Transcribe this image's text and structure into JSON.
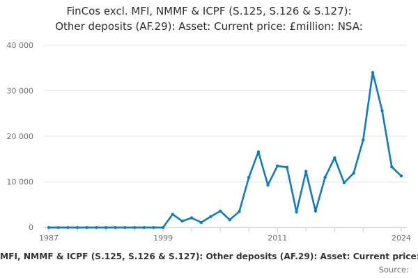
{
  "title": {
    "line1": "FinCos excl. MFI, NMMF & ICPF (S.125, S.126 & S.127):",
    "line2": "Other deposits (AF.29): Asset: Current price: £million: NSA:"
  },
  "footer": {
    "series_label": "MFI, NMMF & ICPF (S.125, S.126 & S.127): Other deposits (AF.29): Asset: Current price:",
    "source_label": "Source:"
  },
  "colors": {
    "line": "#0f7bc4",
    "grid": "#e6e6e6",
    "axis": "#c4ccd9",
    "tick_text": "#6e6e6e",
    "title_text": "#2e2e2e",
    "footer_text": "#333333"
  },
  "chart_data": {
    "type": "line",
    "title": "FinCos excl. MFI, NMMF & ICPF (S.125, S.126 & S.127): Other deposits (AF.29): Asset: Current price: £million: NSA:",
    "xlabel": "",
    "ylabel": "",
    "x": [
      1987,
      1988,
      1989,
      1990,
      1991,
      1992,
      1993,
      1994,
      1995,
      1996,
      1997,
      1998,
      1999,
      2000,
      2001,
      2002,
      2003,
      2004,
      2005,
      2006,
      2007,
      2008,
      2009,
      2010,
      2011,
      2012,
      2013,
      2014,
      2015,
      2016,
      2017,
      2018,
      2019,
      2020,
      2021,
      2022,
      2023,
      2024
    ],
    "values": [
      0,
      0,
      0,
      0,
      0,
      0,
      0,
      0,
      0,
      0,
      0,
      0,
      0,
      2900,
      1400,
      2100,
      1100,
      2400,
      3600,
      1700,
      3500,
      11000,
      16600,
      9300,
      13500,
      13200,
      3400,
      12300,
      3600,
      11000,
      15300,
      9800,
      11900,
      19200,
      34000,
      25600,
      13300,
      11300
    ],
    "xlim": [
      1987,
      2024
    ],
    "ylim": [
      0,
      40000
    ],
    "yticks": [
      0,
      10000,
      20000,
      30000,
      40000
    ],
    "ytick_labels": [
      "0",
      "10 000",
      "20 000",
      "30 000",
      "40 000"
    ],
    "xticks": [
      1987,
      1990,
      1993,
      1996,
      1999,
      2002,
      2005,
      2008,
      2011,
      2014,
      2017,
      2020,
      2024
    ],
    "xtick_labeled": [
      1987,
      1999,
      2011,
      2024
    ],
    "grid": "horizontal",
    "legend": "none",
    "markers": true
  }
}
